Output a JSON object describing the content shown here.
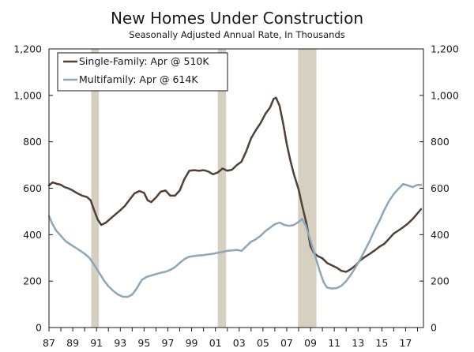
{
  "chart_data": {
    "type": "line",
    "title": "New Homes Under Construction",
    "subtitle": "Seasonally Adjusted Annual Rate, In Thousands",
    "x_range": [
      1987.0,
      2018.5
    ],
    "ylim": [
      0,
      1200
    ],
    "y_ticks": [
      {
        "value": 0,
        "label": "0"
      },
      {
        "value": 200,
        "label": "200"
      },
      {
        "value": 400,
        "label": "400"
      },
      {
        "value": 600,
        "label": "600"
      },
      {
        "value": 800,
        "label": "800"
      },
      {
        "value": 1000,
        "label": "1,000"
      },
      {
        "value": 1200,
        "label": "1,200"
      }
    ],
    "x_ticks": [
      {
        "value": 1987,
        "label": "87"
      },
      {
        "value": 1989,
        "label": "89"
      },
      {
        "value": 1991,
        "label": "91"
      },
      {
        "value": 1993,
        "label": "93"
      },
      {
        "value": 1995,
        "label": "95"
      },
      {
        "value": 1997,
        "label": "97"
      },
      {
        "value": 1999,
        "label": "99"
      },
      {
        "value": 2001,
        "label": "01"
      },
      {
        "value": 2003,
        "label": "03"
      },
      {
        "value": 2005,
        "label": "05"
      },
      {
        "value": 2007,
        "label": "07"
      },
      {
        "value": 2009,
        "label": "09"
      },
      {
        "value": 2011,
        "label": "11"
      },
      {
        "value": 2013,
        "label": "13"
      },
      {
        "value": 2015,
        "label": "15"
      },
      {
        "value": 2017,
        "label": "17"
      }
    ],
    "recessions": [
      {
        "start": 1990.55,
        "end": 1991.2
      },
      {
        "start": 2001.2,
        "end": 2001.9
      },
      {
        "start": 2007.95,
        "end": 2009.5
      }
    ],
    "legend_position": "top-left",
    "series": [
      {
        "name": "Single-Family: Apr @ 510K",
        "color": "#4f4038",
        "points": [
          [
            1987.0,
            612
          ],
          [
            1987.3,
            625
          ],
          [
            1987.6,
            620
          ],
          [
            1988.0,
            615
          ],
          [
            1988.3,
            605
          ],
          [
            1988.7,
            598
          ],
          [
            1989.0,
            590
          ],
          [
            1989.4,
            578
          ],
          [
            1989.8,
            568
          ],
          [
            1990.2,
            562
          ],
          [
            1990.5,
            548
          ],
          [
            1990.8,
            505
          ],
          [
            1991.1,
            465
          ],
          [
            1991.4,
            442
          ],
          [
            1991.8,
            452
          ],
          [
            1992.2,
            470
          ],
          [
            1992.6,
            488
          ],
          [
            1993.0,
            505
          ],
          [
            1993.4,
            525
          ],
          [
            1993.8,
            552
          ],
          [
            1994.2,
            578
          ],
          [
            1994.6,
            588
          ],
          [
            1995.0,
            580
          ],
          [
            1995.3,
            548
          ],
          [
            1995.6,
            540
          ],
          [
            1996.0,
            560
          ],
          [
            1996.4,
            585
          ],
          [
            1996.8,
            590
          ],
          [
            1997.2,
            568
          ],
          [
            1997.6,
            568
          ],
          [
            1998.0,
            590
          ],
          [
            1998.4,
            640
          ],
          [
            1998.8,
            675
          ],
          [
            1999.2,
            678
          ],
          [
            1999.6,
            675
          ],
          [
            2000.0,
            678
          ],
          [
            2000.4,
            672
          ],
          [
            2000.8,
            660
          ],
          [
            2001.2,
            668
          ],
          [
            2001.6,
            685
          ],
          [
            2002.0,
            675
          ],
          [
            2002.4,
            680
          ],
          [
            2002.8,
            700
          ],
          [
            2003.2,
            715
          ],
          [
            2003.6,
            760
          ],
          [
            2004.0,
            815
          ],
          [
            2004.4,
            850
          ],
          [
            2004.8,
            880
          ],
          [
            2005.2,
            920
          ],
          [
            2005.6,
            948
          ],
          [
            2005.9,
            985
          ],
          [
            2006.1,
            990
          ],
          [
            2006.4,
            955
          ],
          [
            2006.7,
            880
          ],
          [
            2007.0,
            790
          ],
          [
            2007.3,
            720
          ],
          [
            2007.6,
            660
          ],
          [
            2008.0,
            595
          ],
          [
            2008.3,
            525
          ],
          [
            2008.7,
            440
          ],
          [
            2009.0,
            350
          ],
          [
            2009.3,
            320
          ],
          [
            2009.6,
            308
          ],
          [
            2010.0,
            298
          ],
          [
            2010.4,
            278
          ],
          [
            2010.8,
            268
          ],
          [
            2011.2,
            258
          ],
          [
            2011.6,
            244
          ],
          [
            2012.0,
            240
          ],
          [
            2012.4,
            252
          ],
          [
            2012.8,
            268
          ],
          [
            2013.2,
            290
          ],
          [
            2013.6,
            305
          ],
          [
            2014.0,
            318
          ],
          [
            2014.4,
            332
          ],
          [
            2014.8,
            348
          ],
          [
            2015.2,
            360
          ],
          [
            2015.6,
            382
          ],
          [
            2016.0,
            405
          ],
          [
            2016.4,
            418
          ],
          [
            2016.8,
            432
          ],
          [
            2017.2,
            448
          ],
          [
            2017.6,
            468
          ],
          [
            2018.0,
            492
          ],
          [
            2018.3,
            510
          ]
        ]
      },
      {
        "name": "Multifamily: Apr @ 614K",
        "color": "#8ea6b7",
        "points": [
          [
            1987.0,
            480
          ],
          [
            1987.3,
            445
          ],
          [
            1987.6,
            418
          ],
          [
            1988.0,
            395
          ],
          [
            1988.4,
            372
          ],
          [
            1988.8,
            358
          ],
          [
            1989.2,
            345
          ],
          [
            1989.6,
            332
          ],
          [
            1990.0,
            318
          ],
          [
            1990.4,
            300
          ],
          [
            1990.8,
            270
          ],
          [
            1991.2,
            238
          ],
          [
            1991.6,
            205
          ],
          [
            1992.0,
            178
          ],
          [
            1992.4,
            158
          ],
          [
            1992.8,
            142
          ],
          [
            1993.2,
            133
          ],
          [
            1993.6,
            132
          ],
          [
            1994.0,
            142
          ],
          [
            1994.4,
            170
          ],
          [
            1994.8,
            205
          ],
          [
            1995.2,
            218
          ],
          [
            1995.6,
            224
          ],
          [
            1996.0,
            230
          ],
          [
            1996.4,
            236
          ],
          [
            1996.8,
            240
          ],
          [
            1997.2,
            248
          ],
          [
            1997.6,
            260
          ],
          [
            1998.0,
            278
          ],
          [
            1998.4,
            295
          ],
          [
            1998.8,
            305
          ],
          [
            1999.2,
            308
          ],
          [
            1999.6,
            310
          ],
          [
            2000.0,
            312
          ],
          [
            2000.4,
            315
          ],
          [
            2000.8,
            318
          ],
          [
            2001.2,
            322
          ],
          [
            2001.6,
            326
          ],
          [
            2002.0,
            330
          ],
          [
            2002.4,
            332
          ],
          [
            2002.8,
            334
          ],
          [
            2003.2,
            330
          ],
          [
            2003.6,
            350
          ],
          [
            2004.0,
            370
          ],
          [
            2004.4,
            380
          ],
          [
            2004.8,
            395
          ],
          [
            2005.2,
            415
          ],
          [
            2005.6,
            430
          ],
          [
            2006.0,
            445
          ],
          [
            2006.4,
            452
          ],
          [
            2006.8,
            442
          ],
          [
            2007.2,
            438
          ],
          [
            2007.6,
            442
          ],
          [
            2008.0,
            455
          ],
          [
            2008.3,
            468
          ],
          [
            2008.6,
            440
          ],
          [
            2008.9,
            392
          ],
          [
            2009.2,
            340
          ],
          [
            2009.5,
            290
          ],
          [
            2009.8,
            240
          ],
          [
            2010.1,
            195
          ],
          [
            2010.4,
            172
          ],
          [
            2010.8,
            168
          ],
          [
            2011.2,
            170
          ],
          [
            2011.6,
            180
          ],
          [
            2012.0,
            200
          ],
          [
            2012.4,
            228
          ],
          [
            2012.8,
            260
          ],
          [
            2013.2,
            295
          ],
          [
            2013.6,
            335
          ],
          [
            2014.0,
            375
          ],
          [
            2014.4,
            420
          ],
          [
            2014.8,
            460
          ],
          [
            2015.2,
            505
          ],
          [
            2015.6,
            545
          ],
          [
            2016.0,
            575
          ],
          [
            2016.4,
            598
          ],
          [
            2016.8,
            618
          ],
          [
            2017.2,
            612
          ],
          [
            2017.6,
            605
          ],
          [
            2018.0,
            615
          ],
          [
            2018.3,
            614
          ]
        ]
      }
    ]
  }
}
